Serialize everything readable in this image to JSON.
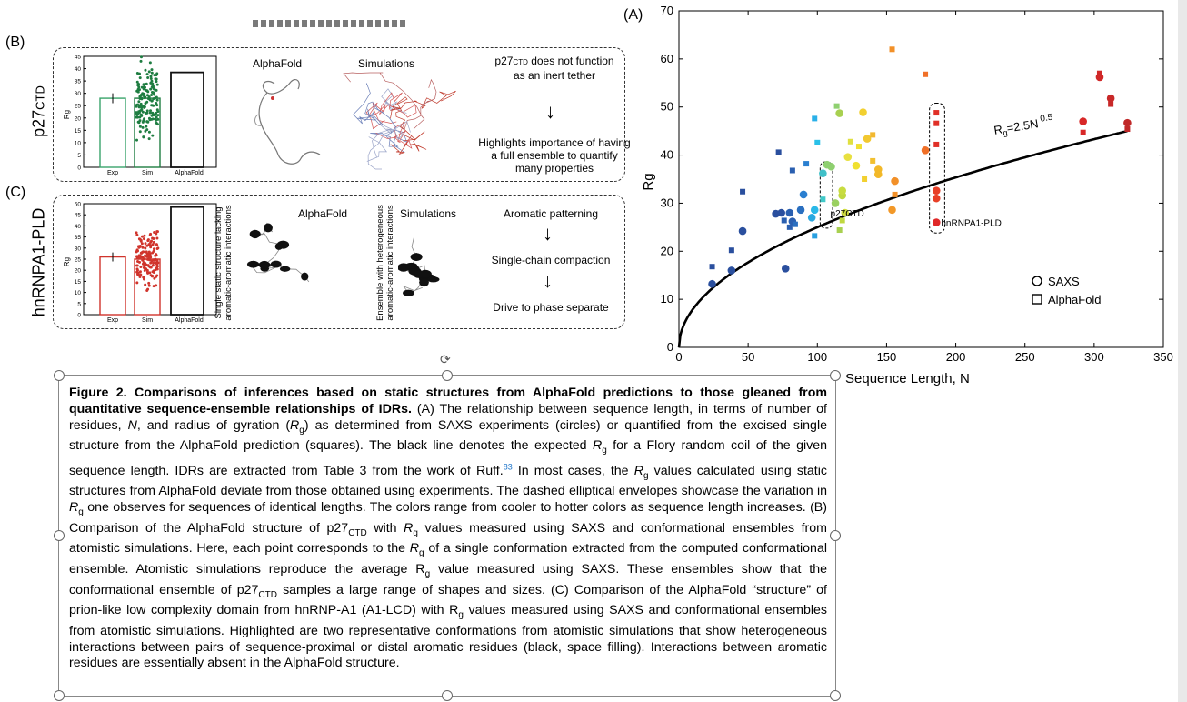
{
  "figure": {
    "panel_labels": {
      "a": "(A)",
      "b": "(B)",
      "c": "(C)"
    },
    "panel_b": {
      "row_label": "p27CTD",
      "ylabel": "Rg",
      "yticks": [
        "0",
        "5",
        "10",
        "15",
        "20",
        "25",
        "30",
        "35",
        "40",
        "45"
      ],
      "bars": {
        "exp": 28,
        "alphafold": 38.5
      },
      "xticks": [
        "Exp",
        "Sim",
        "AlphaFold"
      ],
      "alphafold_label": "AlphaFold",
      "simulations_label": "Simulations",
      "text_1": "p27CTD does not function as an inert tether",
      "text_2": "Highlights importance of having a full ensemble to quantify many properties"
    },
    "panel_c": {
      "row_label": "hnRNPA1-PLD",
      "ylabel": "Rg",
      "yticks": [
        "0",
        "5",
        "10",
        "15",
        "20",
        "25",
        "30",
        "35",
        "40",
        "45",
        "50"
      ],
      "bars": {
        "exp": 26,
        "alphafold": 48.5
      },
      "xticks": [
        "Exp",
        "Sim",
        "AlphaFold"
      ],
      "side_label_1": "Single static structure lacking aromatic-aromatic interactions",
      "side_label_2": "Ensemble with heterogeneous aromatic-aromatic interactions",
      "alphafold_label": "AlphaFold",
      "simulations_label": "Simulations",
      "flow": [
        "Aromatic patterning",
        "Single-chain compaction",
        "Drive to phase separate"
      ]
    },
    "colors": {
      "exp_bar": "#3aa46b",
      "sim_bar": "#1e7d41",
      "c_exp_bar": "#d0342c",
      "c_sim_bar": "#d0342c",
      "af_bar": "#111111"
    }
  },
  "chart_data": {
    "type": "scatter",
    "title": "",
    "xlabel": "Sequence Length, N",
    "ylabel": "Rg",
    "xlim": [
      0,
      350
    ],
    "ylim": [
      0,
      70
    ],
    "xticks": [
      "0",
      "50",
      "100",
      "150",
      "200",
      "250",
      "300",
      "350"
    ],
    "yticks": [
      "0",
      "10",
      "20",
      "30",
      "40",
      "50",
      "60",
      "70"
    ],
    "curve_label": "Rg=2.5N 0.5",
    "curve": {
      "a": 2.5,
      "exponent": 0.5
    },
    "annotations": [
      {
        "text": "p27CTD",
        "x": 112,
        "y": 28
      },
      {
        "text": "hnRNPA1-PLD",
        "x": 192,
        "y": 26
      }
    ],
    "legend": [
      {
        "marker": "circle",
        "label": "SAXS"
      },
      {
        "marker": "square",
        "label": "AlphaFold"
      }
    ],
    "series": [
      {
        "name": "SAXS",
        "marker": "circle",
        "points": [
          {
            "x": 24,
            "y": 13.2,
            "c": "#2a4f9e"
          },
          {
            "x": 38,
            "y": 16,
            "c": "#2a4f9e"
          },
          {
            "x": 46,
            "y": 24.2,
            "c": "#2a4f9e"
          },
          {
            "x": 70,
            "y": 27.8,
            "c": "#2a4f9e"
          },
          {
            "x": 74,
            "y": 28,
            "c": "#2a4f9e"
          },
          {
            "x": 77,
            "y": 16.4,
            "c": "#2a4f9e"
          },
          {
            "x": 80,
            "y": 28,
            "c": "#2a5fb0"
          },
          {
            "x": 82,
            "y": 26.2,
            "c": "#2a5fb0"
          },
          {
            "x": 88,
            "y": 28.6,
            "c": "#2a6fc0"
          },
          {
            "x": 90,
            "y": 31.8,
            "c": "#2a7fd0"
          },
          {
            "x": 96,
            "y": 27,
            "c": "#2aa8e0"
          },
          {
            "x": 98,
            "y": 28.6,
            "c": "#2ab8e8"
          },
          {
            "x": 104,
            "y": 36.2,
            "c": "#40c0c8"
          },
          {
            "x": 107,
            "y": 38,
            "c": "#8fd070"
          },
          {
            "x": 110,
            "y": 37.6,
            "c": "#8fd070"
          },
          {
            "x": 113,
            "y": 30,
            "c": "#9ad060"
          },
          {
            "x": 116,
            "y": 48.7,
            "c": "#a8d050"
          },
          {
            "x": 118,
            "y": 31.6,
            "c": "#c0d840"
          },
          {
            "x": 118,
            "y": 32.6,
            "c": "#c8dc40"
          },
          {
            "x": 120,
            "y": 28,
            "c": "#d0dc40"
          },
          {
            "x": 122,
            "y": 39.6,
            "c": "#e8e040"
          },
          {
            "x": 128,
            "y": 37.8,
            "c": "#f0e030"
          },
          {
            "x": 133,
            "y": 48.9,
            "c": "#f2d030"
          },
          {
            "x": 136,
            "y": 43.4,
            "c": "#f2c830"
          },
          {
            "x": 144,
            "y": 37,
            "c": "#f2b828"
          },
          {
            "x": 144,
            "y": 36,
            "c": "#f2b828"
          },
          {
            "x": 154,
            "y": 28.6,
            "c": "#f29828"
          },
          {
            "x": 156,
            "y": 34.6,
            "c": "#f29028"
          },
          {
            "x": 178,
            "y": 41,
            "c": "#f07028"
          },
          {
            "x": 186,
            "y": 32.6,
            "c": "#e84028"
          },
          {
            "x": 186,
            "y": 31,
            "c": "#e84028"
          },
          {
            "x": 186,
            "y": 26,
            "c": "#e02828"
          },
          {
            "x": 292,
            "y": 47,
            "c": "#d82828"
          },
          {
            "x": 304,
            "y": 56.2,
            "c": "#d02828"
          },
          {
            "x": 312,
            "y": 51.8,
            "c": "#c82828"
          },
          {
            "x": 324,
            "y": 46.7,
            "c": "#c02828"
          }
        ]
      },
      {
        "name": "AlphaFold",
        "marker": "square",
        "points": [
          {
            "x": 24,
            "y": 16.8,
            "c": "#2a4f9e"
          },
          {
            "x": 38,
            "y": 20.2,
            "c": "#2a4f9e"
          },
          {
            "x": 46,
            "y": 32.4,
            "c": "#2a4f9e"
          },
          {
            "x": 72,
            "y": 40.6,
            "c": "#2a4f9e"
          },
          {
            "x": 76,
            "y": 26.4,
            "c": "#2a5fb0"
          },
          {
            "x": 80,
            "y": 25,
            "c": "#2a5fb0"
          },
          {
            "x": 82,
            "y": 36.8,
            "c": "#2a5fb0"
          },
          {
            "x": 84,
            "y": 25.6,
            "c": "#2a6fc0"
          },
          {
            "x": 92,
            "y": 38.2,
            "c": "#2a7fd0"
          },
          {
            "x": 98,
            "y": 23.2,
            "c": "#2aa0e0"
          },
          {
            "x": 98,
            "y": 47.6,
            "c": "#2ab0e8"
          },
          {
            "x": 100,
            "y": 42.6,
            "c": "#2ac0e8"
          },
          {
            "x": 104,
            "y": 30.8,
            "c": "#40c8c8"
          },
          {
            "x": 114,
            "y": 50.2,
            "c": "#8fd070"
          },
          {
            "x": 116,
            "y": 24.4,
            "c": "#a8d050"
          },
          {
            "x": 118,
            "y": 26.4,
            "c": "#c0d840"
          },
          {
            "x": 124,
            "y": 42.8,
            "c": "#e0e040"
          },
          {
            "x": 130,
            "y": 41.8,
            "c": "#f0e030"
          },
          {
            "x": 134,
            "y": 35,
            "c": "#f2d030"
          },
          {
            "x": 140,
            "y": 38.8,
            "c": "#f2c030"
          },
          {
            "x": 140,
            "y": 44.2,
            "c": "#f2b830"
          },
          {
            "x": 156,
            "y": 31.8,
            "c": "#f29028"
          },
          {
            "x": 154,
            "y": 62,
            "c": "#f29028"
          },
          {
            "x": 178,
            "y": 56.8,
            "c": "#f07028"
          },
          {
            "x": 186,
            "y": 48.8,
            "c": "#e03028"
          },
          {
            "x": 186,
            "y": 46.6,
            "c": "#e03028"
          },
          {
            "x": 186,
            "y": 42.2,
            "c": "#e03028"
          },
          {
            "x": 292,
            "y": 44.7,
            "c": "#d82828"
          },
          {
            "x": 304,
            "y": 57,
            "c": "#d02828"
          },
          {
            "x": 312,
            "y": 50.6,
            "c": "#c82828"
          },
          {
            "x": 324,
            "y": 45.4,
            "c": "#c02828"
          }
        ]
      }
    ]
  },
  "caption": {
    "title": "Figure 2. Comparisons of inferences based on static structures from AlphaFold predictions to those gleaned from quantitative sequence-ensemble relationships of IDRs.",
    "body": "(A) The relationship between sequence length, in terms of number of residues, N, and radius of gyration (Rg) as determined from SAXS experiments (circles) or quantified from the excised single structure from the AlphaFold prediction (squares). The black line denotes the expected Rg for a Flory random coil of the given sequence length. IDRs are extracted from Table 3 from the work of Ruff.83 In most cases, the Rg values calculated using static structures from AlphaFold deviate from those obtained using experiments. The dashed elliptical envelopes showcase the variation in Rg one observes for sequences of identical lengths. The colors range from cooler to hotter colors as sequence length increases. (B) Comparison of the AlphaFold structure of p27CTD with Rg values measured using SAXS and conformational ensembles from atomistic simulations. Here, each point corresponds to the Rg of a single conformation extracted from the computed conformational ensemble. Atomistic simulations reproduce the average Rg value measured using SAXS. These ensembles show that the conformational ensemble of p27CTD samples a large range of shapes and sizes. (C) Comparison of the AlphaFold “structure” of prion-like low complexity domain from hnRNP-A1 (A1-LCD) with Rg values measured using SAXS and conformational ensembles from atomistic simulations. Highlighted are two representative conformations from atomistic simulations that show heterogeneous interactions between pairs of sequence-proximal or distal aromatic residues (black, space filling). Interactions between aromatic residues are essentially absent in the AlphaFold structure."
  }
}
